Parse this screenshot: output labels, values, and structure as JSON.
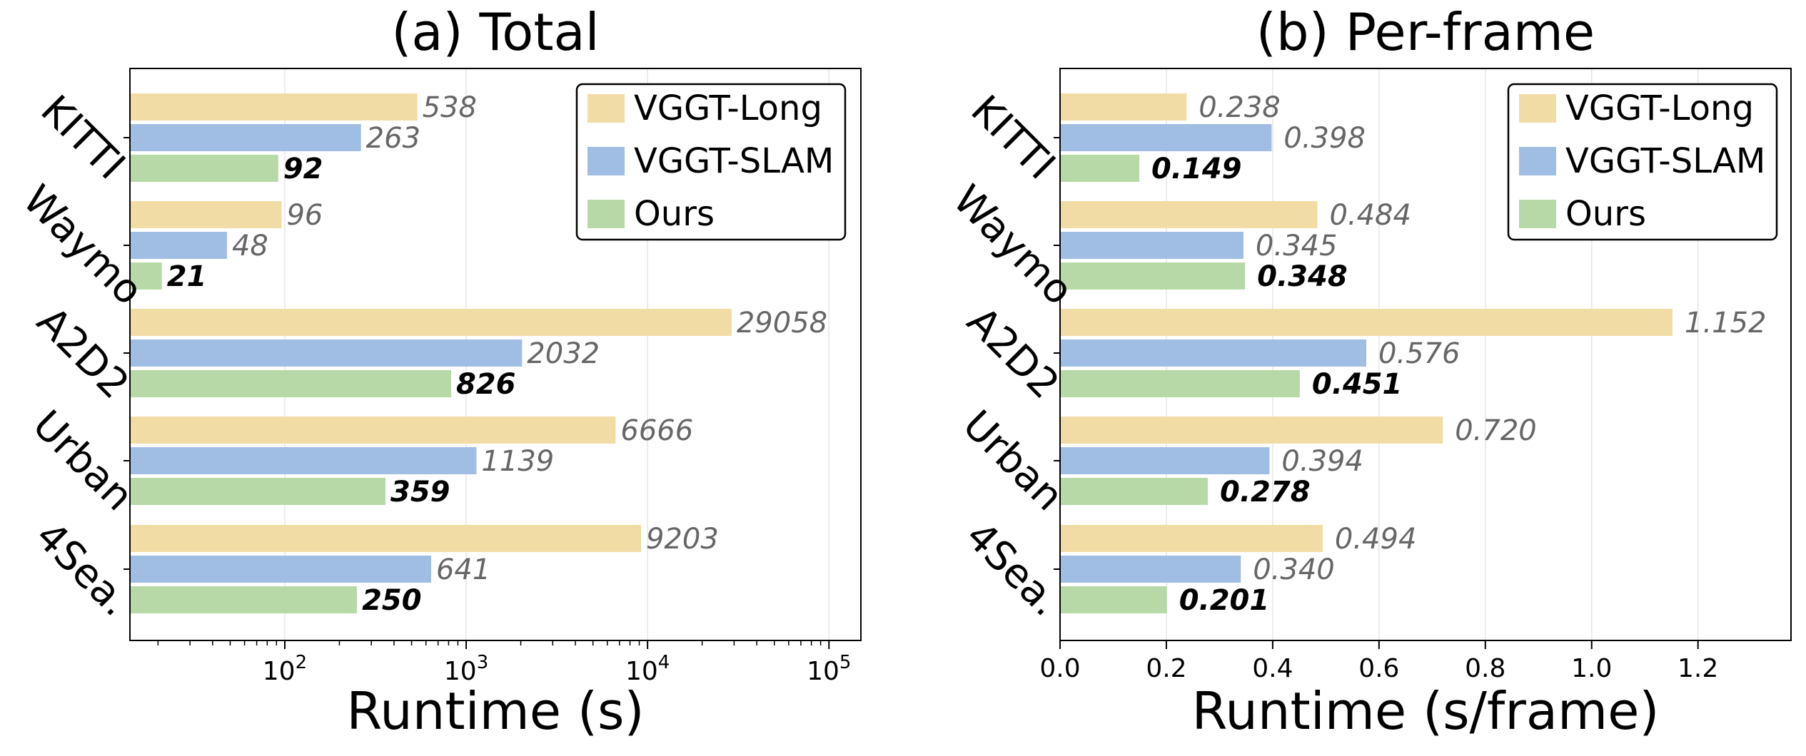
{
  "chart_data": [
    {
      "type": "bar",
      "orientation": "horizontal",
      "title": "(a) Total",
      "xlabel": "Runtime (s)",
      "ylabel": "",
      "xscale": "log",
      "xlim": [
        14,
        150000
      ],
      "xticks": [
        100,
        1000,
        10000,
        100000
      ],
      "xtick_labels": [
        {
          "base": "10",
          "exp": "2"
        },
        {
          "base": "10",
          "exp": "3"
        },
        {
          "base": "10",
          "exp": "4"
        },
        {
          "base": "10",
          "exp": "5"
        }
      ],
      "categories": [
        "KITTI",
        "Waymo",
        "A2D2",
        "Urban",
        "4Sea."
      ],
      "series": [
        {
          "name": "VGGT-Long",
          "color": "#f2dca6",
          "values": [
            538,
            96,
            29058,
            6666,
            9203
          ],
          "labels": [
            "538",
            "96",
            "29058",
            "6666",
            "9203"
          ],
          "label_style": "italic"
        },
        {
          "name": "VGGT-SLAM",
          "color": "#a0bde3",
          "values": [
            263,
            48,
            2032,
            1139,
            641
          ],
          "labels": [
            "263",
            "48",
            "2032",
            "1139",
            "641"
          ],
          "label_style": "italic"
        },
        {
          "name": "Ours",
          "color": "#b7d9a8",
          "values": [
            92,
            21,
            826,
            359,
            250
          ],
          "labels": [
            "92",
            "21",
            "826",
            "359",
            "250"
          ],
          "label_style": "bold-italic"
        }
      ],
      "legend": "top-right",
      "grid": "x"
    },
    {
      "type": "bar",
      "orientation": "horizontal",
      "title": "(b) Per-frame",
      "xlabel": "Runtime (s/frame)",
      "ylabel": "",
      "xscale": "linear",
      "xlim": [
        0,
        1.375
      ],
      "xticks": [
        0.0,
        0.2,
        0.4,
        0.6,
        0.8,
        1.0,
        1.2
      ],
      "xtick_labels": [
        "0.0",
        "0.2",
        "0.4",
        "0.6",
        "0.8",
        "1.0",
        "1.2"
      ],
      "categories": [
        "KITTI",
        "Waymo",
        "A2D2",
        "Urban",
        "4Sea."
      ],
      "series": [
        {
          "name": "VGGT-Long",
          "color": "#f2dca6",
          "values": [
            0.238,
            0.484,
            1.152,
            0.72,
            0.494
          ],
          "labels": [
            "0.238",
            "0.484",
            "1.152",
            "0.720",
            "0.494"
          ],
          "label_style": "italic"
        },
        {
          "name": "VGGT-SLAM",
          "color": "#a0bde3",
          "values": [
            0.398,
            0.345,
            0.576,
            0.394,
            0.34
          ],
          "labels": [
            "0.398",
            "0.345",
            "0.576",
            "0.394",
            "0.340"
          ],
          "label_style": "italic"
        },
        {
          "name": "Ours",
          "color": "#b7d9a8",
          "values": [
            0.149,
            0.348,
            0.451,
            0.278,
            0.201
          ],
          "labels": [
            "0.149",
            "0.348",
            "0.451",
            "0.278",
            "0.201"
          ],
          "label_style": "bold-italic"
        }
      ],
      "legend": "top-right",
      "grid": "x"
    }
  ]
}
